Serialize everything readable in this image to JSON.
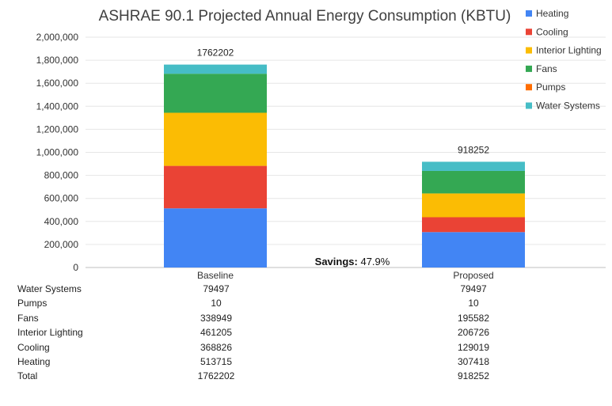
{
  "chart_data": {
    "type": "bar",
    "stacked": true,
    "title": "ASHRAE 90.1 Projected Annual Energy Consumption (KBTU)",
    "categories": [
      "Baseline",
      "Proposed"
    ],
    "series": [
      {
        "name": "Heating",
        "color": "#4285F4",
        "values": [
          513715,
          307418
        ]
      },
      {
        "name": "Cooling",
        "color": "#EA4335",
        "values": [
          368826,
          129019
        ]
      },
      {
        "name": "Interior Lighting",
        "color": "#FBBC04",
        "values": [
          461205,
          206726
        ]
      },
      {
        "name": "Fans",
        "color": "#34A853",
        "values": [
          338949,
          195582
        ]
      },
      {
        "name": "Pumps",
        "color": "#FF6D01",
        "values": [
          10,
          10
        ]
      },
      {
        "name": "Water Systems",
        "color": "#46BDC6",
        "values": [
          79497,
          79497
        ]
      }
    ],
    "totals": [
      "1762202",
      "918252"
    ],
    "ylim": [
      0,
      2000000
    ],
    "yticks": [
      "0",
      "200,000",
      "400,000",
      "600,000",
      "800,000",
      "1,000,000",
      "1,200,000",
      "1,400,000",
      "1,600,000",
      "1,800,000",
      "2,000,000"
    ],
    "legend_position": "top-right",
    "annotation": {
      "key": "Savings:",
      "value": "47.9%"
    },
    "xlabel": "",
    "ylabel": ""
  },
  "table": {
    "rows": [
      {
        "label": "Water Systems",
        "values": [
          "79497",
          "79497"
        ]
      },
      {
        "label": "Pumps",
        "values": [
          "10",
          "10"
        ]
      },
      {
        "label": "Fans",
        "values": [
          "338949",
          "195582"
        ]
      },
      {
        "label": "Interior Lighting",
        "values": [
          "461205",
          "206726"
        ]
      },
      {
        "label": "Cooling",
        "values": [
          "368826",
          "129019"
        ]
      },
      {
        "label": "Heating",
        "values": [
          "513715",
          "307418"
        ]
      },
      {
        "label": "Total",
        "values": [
          "1762202",
          "918252"
        ]
      }
    ]
  }
}
